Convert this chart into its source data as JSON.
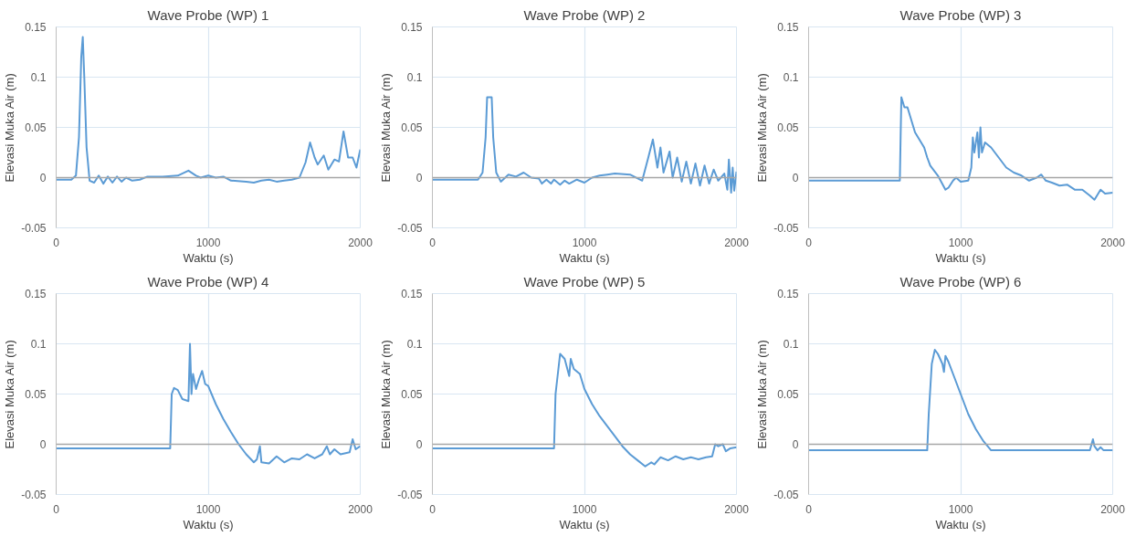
{
  "chart_data": [
    {
      "type": "line",
      "title": "Wave Probe (WP) 1",
      "xlabel": "Waktu (s)",
      "ylabel": "Elevasi Muka Air (m)",
      "xlim": [
        0,
        2000
      ],
      "xticks": [
        0,
        1000,
        2000
      ],
      "ylim": [
        -0.05,
        0.15
      ],
      "yticks": [
        -0.05,
        0,
        0.05,
        0.1,
        0.15
      ],
      "grid": true,
      "ref_lines": [
        {
          "axis": "y",
          "value": 0,
          "color": "#a6a6a6"
        }
      ],
      "series": [
        {
          "color": "#5b9bd5",
          "x": [
            0,
            100,
            130,
            150,
            165,
            175,
            185,
            200,
            220,
            250,
            280,
            310,
            340,
            370,
            400,
            430,
            460,
            500,
            550,
            600,
            700,
            800,
            870,
            920,
            950,
            1000,
            1050,
            1100,
            1150,
            1250,
            1300,
            1350,
            1400,
            1450,
            1500,
            1550,
            1600,
            1640,
            1670,
            1700,
            1720,
            1760,
            1790,
            1830,
            1860,
            1890,
            1920,
            1950,
            1975,
            2000
          ],
          "values": [
            -0.002,
            -0.002,
            0.002,
            0.04,
            0.12,
            0.14,
            0.1,
            0.03,
            -0.003,
            -0.005,
            0.002,
            -0.006,
            0.001,
            -0.005,
            0.001,
            -0.004,
            0,
            -0.003,
            -0.002,
            0.001,
            0.001,
            0.002,
            0.007,
            0.002,
            0,
            0.002,
            0,
            0.001,
            -0.003,
            -0.004,
            -0.005,
            -0.003,
            -0.002,
            -0.004,
            -0.003,
            -0.002,
            0,
            0.015,
            0.035,
            0.02,
            0.013,
            0.022,
            0.008,
            0.018,
            0.016,
            0.046,
            0.02,
            0.02,
            0.01,
            0.028
          ]
        }
      ]
    },
    {
      "type": "line",
      "title": "Wave Probe (WP) 2",
      "xlabel": "Waktu (s)",
      "ylabel": "Elevasi Muka Air (m)",
      "xlim": [
        0,
        2000
      ],
      "xticks": [
        0,
        1000,
        2000
      ],
      "ylim": [
        -0.05,
        0.15
      ],
      "yticks": [
        -0.05,
        0,
        0.05,
        0.1,
        0.15
      ],
      "grid": true,
      "ref_lines": [
        {
          "axis": "y",
          "value": 0,
          "color": "#a6a6a6"
        }
      ],
      "series": [
        {
          "color": "#5b9bd5",
          "x": [
            0,
            300,
            330,
            350,
            360,
            390,
            400,
            420,
            450,
            500,
            550,
            600,
            650,
            700,
            720,
            750,
            780,
            800,
            840,
            870,
            900,
            950,
            1000,
            1050,
            1100,
            1150,
            1200,
            1300,
            1380,
            1420,
            1450,
            1480,
            1500,
            1520,
            1560,
            1580,
            1610,
            1640,
            1670,
            1700,
            1730,
            1760,
            1790,
            1820,
            1850,
            1880,
            1920,
            1940,
            1950,
            1965,
            1975,
            1985,
            2000
          ],
          "values": [
            -0.002,
            -0.002,
            0.005,
            0.04,
            0.08,
            0.08,
            0.04,
            0.005,
            -0.004,
            0.003,
            0.001,
            0.005,
            0,
            -0.001,
            -0.006,
            -0.002,
            -0.006,
            -0.002,
            -0.007,
            -0.003,
            -0.006,
            -0.002,
            -0.005,
            0,
            0.002,
            0.003,
            0.004,
            0.003,
            -0.003,
            0.02,
            0.038,
            0.01,
            0.03,
            0.005,
            0.026,
            0,
            0.02,
            -0.004,
            0.016,
            -0.006,
            0.014,
            -0.008,
            0.012,
            -0.006,
            0.008,
            -0.003,
            0.004,
            -0.012,
            0.018,
            -0.015,
            0.01,
            -0.013,
            0.006
          ]
        }
      ]
    },
    {
      "type": "line",
      "title": "Wave Probe (WP) 3",
      "xlabel": "Waktu (s)",
      "ylabel": "Elevasi Muka Air (m)",
      "xlim": [
        0,
        2000
      ],
      "xticks": [
        0,
        1000,
        2000
      ],
      "ylim": [
        -0.05,
        0.15
      ],
      "yticks": [
        -0.05,
        0,
        0.05,
        0.1,
        0.15
      ],
      "grid": true,
      "ref_lines": [
        {
          "axis": "y",
          "value": 0,
          "color": "#a6a6a6"
        }
      ],
      "series": [
        {
          "color": "#5b9bd5",
          "x": [
            0,
            600,
            605,
            610,
            630,
            650,
            700,
            760,
            780,
            800,
            850,
            900,
            920,
            950,
            970,
            1000,
            1050,
            1070,
            1080,
            1090,
            1110,
            1120,
            1130,
            1140,
            1160,
            1200,
            1250,
            1300,
            1350,
            1400,
            1450,
            1500,
            1530,
            1560,
            1600,
            1650,
            1700,
            1750,
            1800,
            1850,
            1880,
            1920,
            1950,
            2000
          ],
          "values": [
            -0.003,
            -0.003,
            0.04,
            0.08,
            0.07,
            0.07,
            0.045,
            0.03,
            0.02,
            0.012,
            0.002,
            -0.012,
            -0.01,
            -0.003,
            0,
            -0.004,
            -0.003,
            0.01,
            0.04,
            0.025,
            0.045,
            0.02,
            0.05,
            0.025,
            0.035,
            0.03,
            0.02,
            0.01,
            0.005,
            0.002,
            -0.003,
            0,
            0.003,
            -0.003,
            -0.005,
            -0.008,
            -0.007,
            -0.012,
            -0.012,
            -0.018,
            -0.022,
            -0.012,
            -0.016,
            -0.015
          ]
        }
      ]
    },
    {
      "type": "line",
      "title": "Wave Probe (WP) 4",
      "xlabel": "Waktu (s)",
      "ylabel": "Elevasi Muka Air (m)",
      "xlim": [
        0,
        2000
      ],
      "xticks": [
        0,
        1000,
        2000
      ],
      "ylim": [
        -0.05,
        0.15
      ],
      "yticks": [
        -0.05,
        0,
        0.05,
        0.1,
        0.15
      ],
      "grid": true,
      "ref_lines": [
        {
          "axis": "y",
          "value": 0,
          "color": "#a6a6a6"
        }
      ],
      "series": [
        {
          "color": "#5b9bd5",
          "x": [
            0,
            750,
            760,
            775,
            800,
            830,
            870,
            880,
            890,
            900,
            920,
            940,
            960,
            980,
            1000,
            1050,
            1100,
            1150,
            1200,
            1250,
            1300,
            1320,
            1340,
            1350,
            1400,
            1450,
            1500,
            1550,
            1600,
            1650,
            1700,
            1750,
            1780,
            1800,
            1830,
            1870,
            1930,
            1950,
            1970,
            2000
          ],
          "values": [
            -0.004,
            -0.004,
            0.05,
            0.056,
            0.054,
            0.045,
            0.043,
            0.1,
            0.05,
            0.07,
            0.055,
            0.065,
            0.073,
            0.06,
            0.058,
            0.04,
            0.025,
            0.012,
            0,
            -0.01,
            -0.018,
            -0.015,
            -0.002,
            -0.018,
            -0.019,
            -0.012,
            -0.018,
            -0.014,
            -0.015,
            -0.01,
            -0.014,
            -0.01,
            -0.002,
            -0.01,
            -0.005,
            -0.01,
            -0.008,
            0.005,
            -0.005,
            -0.002
          ]
        }
      ]
    },
    {
      "type": "line",
      "title": "Wave Probe (WP) 5",
      "xlabel": "Waktu (s)",
      "ylabel": "Elevasi Muka Air (m)",
      "xlim": [
        0,
        2000
      ],
      "xticks": [
        0,
        1000,
        2000
      ],
      "ylim": [
        -0.05,
        0.15
      ],
      "yticks": [
        -0.05,
        0,
        0.05,
        0.1,
        0.15
      ],
      "grid": true,
      "ref_lines": [
        {
          "axis": "y",
          "value": 0,
          "color": "#a6a6a6"
        }
      ],
      "series": [
        {
          "color": "#5b9bd5",
          "x": [
            0,
            800,
            810,
            840,
            870,
            900,
            910,
            930,
            970,
            1000,
            1050,
            1100,
            1150,
            1200,
            1250,
            1300,
            1350,
            1400,
            1420,
            1440,
            1460,
            1500,
            1550,
            1600,
            1650,
            1700,
            1750,
            1800,
            1840,
            1860,
            1880,
            1910,
            1930,
            1960,
            2000
          ],
          "values": [
            -0.004,
            -0.004,
            0.05,
            0.09,
            0.085,
            0.068,
            0.085,
            0.075,
            0.07,
            0.055,
            0.04,
            0.028,
            0.018,
            0.008,
            -0.002,
            -0.01,
            -0.016,
            -0.022,
            -0.02,
            -0.018,
            -0.02,
            -0.013,
            -0.016,
            -0.012,
            -0.015,
            -0.013,
            -0.015,
            -0.013,
            -0.012,
            0,
            -0.002,
            0,
            -0.007,
            -0.004,
            -0.003
          ]
        }
      ]
    },
    {
      "type": "line",
      "title": "Wave Probe (WP) 6",
      "xlabel": "Waktu (s)",
      "ylabel": "Elevasi Muka Air (m)",
      "xlim": [
        0,
        2000
      ],
      "xticks": [
        0,
        1000,
        2000
      ],
      "ylim": [
        -0.05,
        0.15
      ],
      "yticks": [
        -0.05,
        0,
        0.05,
        0.1,
        0.15
      ],
      "grid": true,
      "ref_lines": [
        {
          "axis": "y",
          "value": 0,
          "color": "#a6a6a6"
        }
      ],
      "series": [
        {
          "color": "#5b9bd5",
          "x": [
            0,
            780,
            790,
            810,
            830,
            850,
            880,
            890,
            900,
            920,
            950,
            1000,
            1050,
            1100,
            1150,
            1200,
            1850,
            1870,
            1880,
            1900,
            1920,
            1940,
            2000
          ],
          "values": [
            -0.006,
            -0.006,
            0.03,
            0.08,
            0.094,
            0.09,
            0.08,
            0.072,
            0.088,
            0.082,
            0.07,
            0.05,
            0.03,
            0.015,
            0.003,
            -0.006,
            -0.006,
            0.005,
            -0.002,
            -0.006,
            -0.003,
            -0.006,
            -0.006
          ]
        }
      ]
    }
  ]
}
